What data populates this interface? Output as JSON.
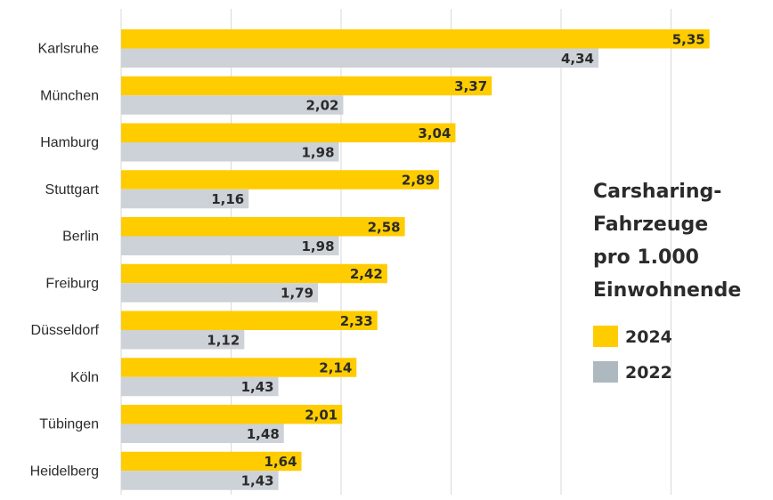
{
  "chart_data": {
    "type": "bar",
    "orientation": "horizontal",
    "title": "Carsharing-\nFahrzeuge\npro 1.000\nEinwohnende",
    "categories": [
      "Karlsruhe",
      "München",
      "Hamburg",
      "Stuttgart",
      "Berlin",
      "Freiburg",
      "Düsseldorf",
      "Köln",
      "Tübingen",
      "Heidelberg"
    ],
    "series": [
      {
        "name": "2024",
        "color": "#ffcc00",
        "values": [
          5.35,
          3.37,
          3.04,
          2.89,
          2.58,
          2.42,
          2.33,
          2.14,
          2.01,
          1.64
        ],
        "labels": [
          "5,35",
          "3,37",
          "3,04",
          "2,89",
          "2,58",
          "2,42",
          "2,33",
          "2,14",
          "2,01",
          "1,64"
        ]
      },
      {
        "name": "2022",
        "color": "#cdd2d8",
        "values": [
          4.34,
          2.02,
          1.98,
          1.16,
          1.98,
          1.79,
          1.12,
          1.43,
          1.48,
          1.43
        ],
        "labels": [
          "4,34",
          "2,02",
          "1,98",
          "1,16",
          "1,98",
          "1,79",
          "1,12",
          "1,43",
          "1,48",
          "1,43"
        ]
      }
    ],
    "xlim": [
      0,
      6
    ],
    "grid": true,
    "legend_position": "right",
    "legend_colors": {
      "2024": "#ffcc00",
      "2022": "#aeb8bf"
    }
  }
}
